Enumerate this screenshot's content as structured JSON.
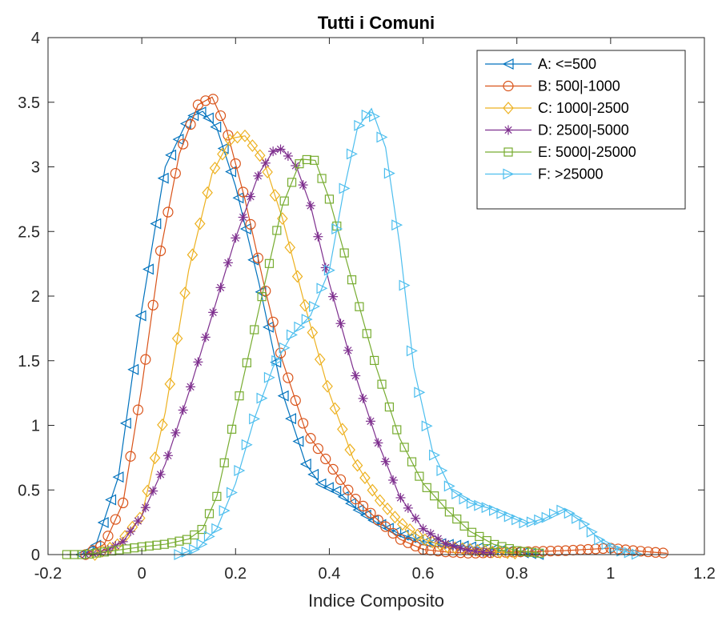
{
  "chart_data": {
    "type": "line",
    "title": "Tutti i Comuni",
    "xlabel": "Indice Composito",
    "ylabel": "",
    "xlim": [
      -0.2,
      1.2
    ],
    "ylim": [
      0,
      4
    ],
    "xticks": [
      "-0.2",
      "0",
      "0.2",
      "0.4",
      "0.6",
      "0.8",
      "1",
      "1.2"
    ],
    "yticks": [
      "0",
      "0.5",
      "1",
      "1.5",
      "2",
      "2.5",
      "3",
      "3.5",
      "4"
    ],
    "grid": false,
    "legend_position": "top-right",
    "series": [
      {
        "name": "A: <=500",
        "color": "#0072BD",
        "marker": "triangle-left",
        "x": [
          -0.13,
          -0.1,
          -0.05,
          0.0,
          0.05,
          0.1,
          0.13,
          0.16,
          0.2,
          0.25,
          0.3,
          0.35,
          0.38,
          0.42,
          0.46,
          0.5,
          0.55,
          0.6,
          0.65,
          0.7,
          0.75,
          0.8,
          0.85
        ],
        "y": [
          0.0,
          0.05,
          0.6,
          1.9,
          3.0,
          3.38,
          3.43,
          3.3,
          2.85,
          2.1,
          1.25,
          0.7,
          0.55,
          0.48,
          0.35,
          0.25,
          0.16,
          0.1,
          0.08,
          0.06,
          0.04,
          0.02,
          0.0
        ]
      },
      {
        "name": "B: 500|-1000",
        "color": "#D95319",
        "marker": "circle",
        "x": [
          -0.12,
          -0.08,
          -0.04,
          0.0,
          0.04,
          0.08,
          0.12,
          0.15,
          0.18,
          0.22,
          0.26,
          0.3,
          0.35,
          0.4,
          0.45,
          0.5,
          0.55,
          0.6,
          0.65,
          0.7,
          0.8,
          0.9,
          1.0,
          1.05,
          1.12
        ],
        "y": [
          0.0,
          0.08,
          0.4,
          1.3,
          2.35,
          3.1,
          3.48,
          3.54,
          3.3,
          2.75,
          2.1,
          1.5,
          0.95,
          0.7,
          0.45,
          0.28,
          0.12,
          0.04,
          0.02,
          0.01,
          0.02,
          0.03,
          0.05,
          0.03,
          0.01
        ]
      },
      {
        "name": "C: 1000|-2500",
        "color": "#EDB120",
        "marker": "diamond",
        "x": [
          -0.1,
          -0.05,
          0.0,
          0.05,
          0.1,
          0.15,
          0.19,
          0.22,
          0.26,
          0.3,
          0.35,
          0.4,
          0.45,
          0.5,
          0.55,
          0.6,
          0.65,
          0.7,
          0.75,
          0.8
        ],
        "y": [
          0.0,
          0.08,
          0.3,
          1.1,
          2.2,
          2.95,
          3.22,
          3.24,
          3.05,
          2.6,
          1.9,
          1.25,
          0.75,
          0.45,
          0.25,
          0.12,
          0.06,
          0.04,
          0.02,
          0.01
        ]
      },
      {
        "name": "D: 2500|-5000",
        "color": "#7E2F8E",
        "marker": "asterisk",
        "x": [
          -0.12,
          -0.08,
          -0.04,
          0.0,
          0.05,
          0.1,
          0.15,
          0.2,
          0.25,
          0.28,
          0.3,
          0.33,
          0.36,
          0.4,
          0.45,
          0.5,
          0.55,
          0.6,
          0.65,
          0.7,
          0.75
        ],
        "y": [
          0.0,
          0.02,
          0.1,
          0.3,
          0.7,
          1.25,
          1.85,
          2.45,
          2.95,
          3.12,
          3.14,
          3.0,
          2.7,
          2.1,
          1.45,
          0.9,
          0.45,
          0.2,
          0.08,
          0.03,
          0.01
        ]
      },
      {
        "name": "E: 5000|-25000",
        "color": "#77AC30",
        "marker": "square",
        "x": [
          -0.16,
          -0.12,
          -0.08,
          -0.04,
          0.0,
          0.05,
          0.1,
          0.13,
          0.16,
          0.2,
          0.25,
          0.3,
          0.34,
          0.37,
          0.4,
          0.45,
          0.5,
          0.55,
          0.6,
          0.65,
          0.7,
          0.75,
          0.8,
          0.85
        ],
        "y": [
          0.0,
          0.0,
          0.02,
          0.04,
          0.06,
          0.08,
          0.12,
          0.2,
          0.45,
          1.1,
          1.9,
          2.7,
          3.06,
          3.05,
          2.75,
          2.1,
          1.45,
          0.9,
          0.55,
          0.35,
          0.18,
          0.08,
          0.03,
          0.01
        ]
      },
      {
        "name": "F: >25000",
        "color": "#4DBEEE",
        "marker": "triangle-right",
        "x": [
          0.08,
          0.12,
          0.16,
          0.2,
          0.24,
          0.28,
          0.32,
          0.36,
          0.4,
          0.43,
          0.46,
          0.49,
          0.52,
          0.55,
          0.58,
          0.62,
          0.66,
          0.7,
          0.74,
          0.78,
          0.82,
          0.86,
          0.9,
          0.94,
          0.98,
          1.02,
          1.06
        ],
        "y": [
          0.0,
          0.05,
          0.2,
          0.55,
          1.05,
          1.45,
          1.7,
          1.85,
          2.2,
          2.8,
          3.3,
          3.45,
          3.15,
          2.4,
          1.45,
          0.8,
          0.5,
          0.4,
          0.36,
          0.3,
          0.24,
          0.28,
          0.35,
          0.25,
          0.1,
          0.03,
          0.0
        ]
      }
    ]
  }
}
